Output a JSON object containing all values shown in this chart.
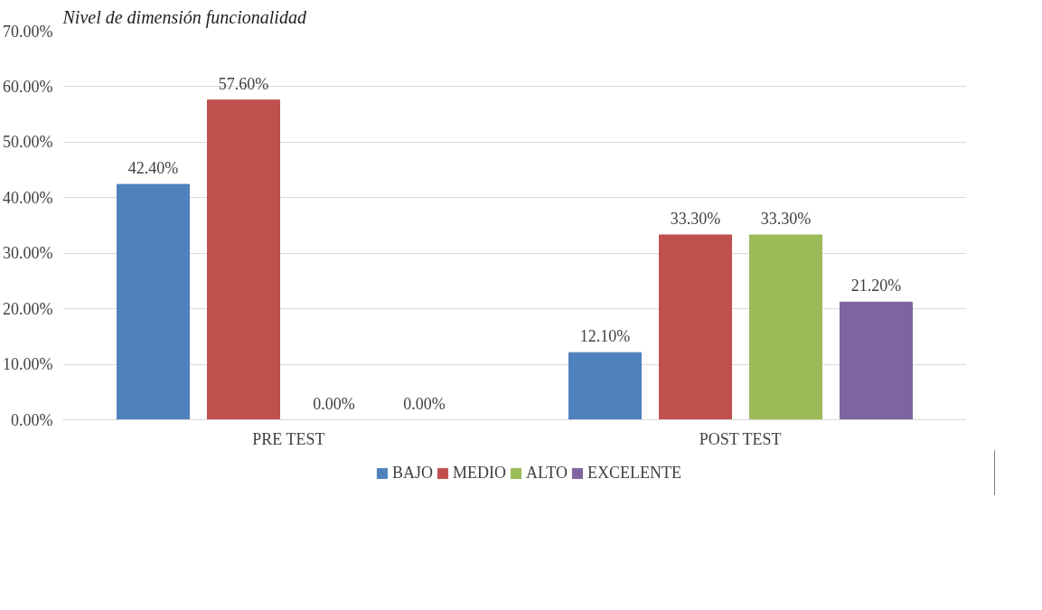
{
  "chart_data": {
    "type": "bar",
    "title": "Nivel de dimensión funcionalidad",
    "categories": [
      "PRE TEST",
      "POST TEST"
    ],
    "series": [
      {
        "name": "BAJO",
        "color": "#4f81bd",
        "values": [
          42.4,
          12.1
        ],
        "value_labels": [
          "42.40%",
          "12.10%"
        ]
      },
      {
        "name": "MEDIO",
        "color": "#c0504d",
        "values": [
          57.6,
          33.3
        ],
        "value_labels": [
          "57.60%",
          "33.30%"
        ]
      },
      {
        "name": "ALTO",
        "color": "#9bbb59",
        "values": [
          0,
          33.3
        ],
        "value_labels": [
          "0.00%",
          "33.30%"
        ]
      },
      {
        "name": "EXCELENTE",
        "color": "#8064a2",
        "values": [
          0,
          21.2
        ],
        "value_labels": [
          "0.00%",
          "21.20%"
        ]
      }
    ],
    "ylim": [
      0,
      70
    ],
    "yticks": [
      {
        "value": 0,
        "label": "0.00%"
      },
      {
        "value": 10,
        "label": "10.00%"
      },
      {
        "value": 20,
        "label": "20.00%"
      },
      {
        "value": 30,
        "label": "30.00%"
      },
      {
        "value": 40,
        "label": "40.00%"
      },
      {
        "value": 50,
        "label": "50.00%"
      },
      {
        "value": 60,
        "label": "60.00%"
      },
      {
        "value": 70,
        "label": "70.00%"
      }
    ],
    "grid": "y",
    "legend": "bottom"
  }
}
